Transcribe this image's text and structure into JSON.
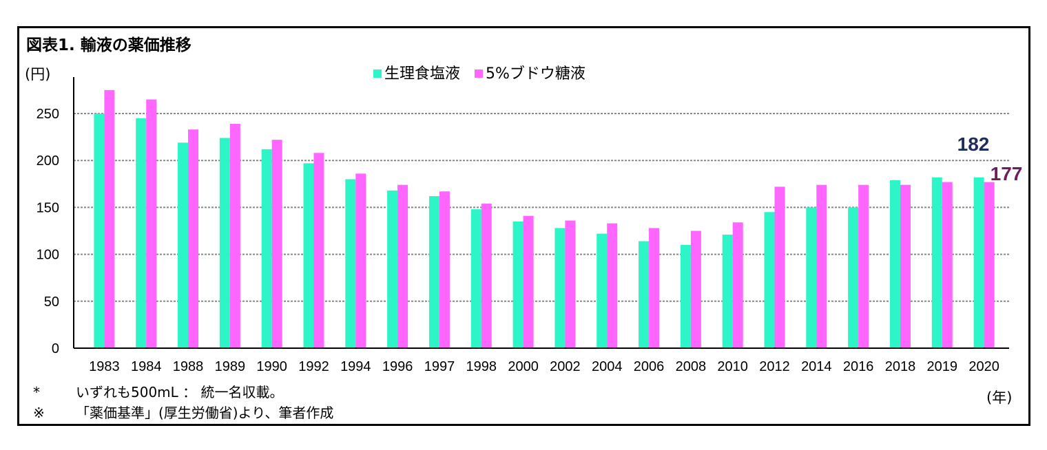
{
  "title": "図表1.  輸液の薬価推移",
  "y_unit": "(円)",
  "x_unit": "(年)",
  "notes": [
    {
      "mark": "*",
      "text": "いずれも500mL ： 統一名収載。"
    },
    {
      "mark": "※",
      "text": "「薬価基準」(厚生労働省)より、筆者作成"
    }
  ],
  "colors": {
    "saline": "#2ef5c8",
    "glucose": "#ff66ff",
    "callout_saline": "#1f2d5c",
    "callout_glucose": "#6b1f5c"
  },
  "chart_data": {
    "type": "bar",
    "title": "図表1.  輸液の薬価推移",
    "ylabel": "(円)",
    "xlabel": "(年)",
    "ylim": [
      0,
      250
    ],
    "yticks": [
      0,
      50,
      100,
      150,
      200,
      250
    ],
    "grid": true,
    "legend_position": "top-center",
    "categories": [
      "1983",
      "1984",
      "1988",
      "1989",
      "1990",
      "1992",
      "1994",
      "1996",
      "1997",
      "1998",
      "2000",
      "2002",
      "2004",
      "2006",
      "2008",
      "2010",
      "2012",
      "2014",
      "2016",
      "2018",
      "2019",
      "2020"
    ],
    "series": [
      {
        "name": "生理食塩液",
        "values": [
          250,
          245,
          219,
          224,
          212,
          197,
          180,
          168,
          162,
          148,
          135,
          128,
          122,
          114,
          110,
          121,
          145,
          150,
          150,
          179,
          182,
          182
        ]
      },
      {
        "name": "5%ブドウ糖液",
        "values": [
          275,
          265,
          233,
          239,
          222,
          208,
          186,
          174,
          167,
          154,
          141,
          136,
          133,
          128,
          125,
          134,
          172,
          174,
          174,
          174,
          177,
          177
        ]
      }
    ],
    "annotations": [
      "182",
      "177"
    ]
  }
}
